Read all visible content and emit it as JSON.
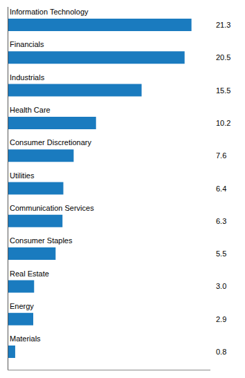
{
  "chart_data": {
    "type": "bar",
    "orientation": "horizontal",
    "categories": [
      "Information Technology",
      "Financials",
      "Industrials",
      "Health Care",
      "Consumer Discretionary",
      "Utilities",
      "Communication Services",
      "Consumer Staples",
      "Real Estate",
      "Energy",
      "Materials"
    ],
    "values": [
      21.3,
      20.5,
      15.5,
      10.2,
      7.6,
      6.4,
      6.3,
      5.5,
      3.0,
      2.9,
      0.8
    ],
    "value_labels": [
      "21.3",
      "20.5",
      "15.5",
      "10.2",
      "7.6",
      "6.4",
      "6.3",
      "5.5",
      "3.0",
      "2.9",
      "0.8"
    ],
    "color": "#1a7bbf",
    "xlim": [
      0,
      23.5
    ],
    "grid": false,
    "tick_labels": false,
    "data_labels": true
  }
}
